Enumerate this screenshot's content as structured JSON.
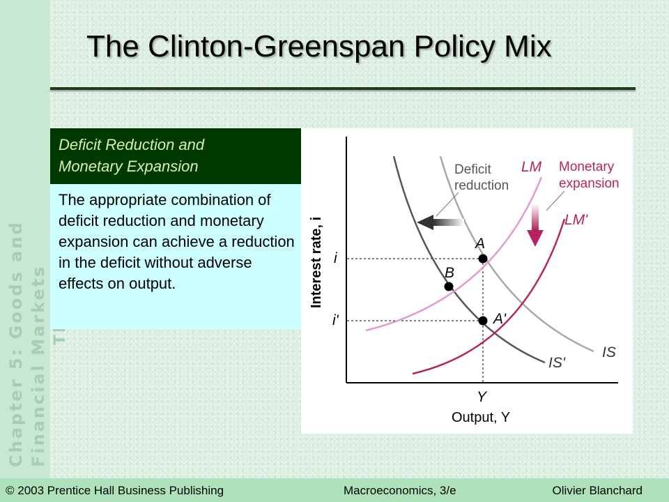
{
  "sidebar": {
    "line1": "Chapter 5: Goods and Financial Markets",
    "line2": "The IS/LM Model"
  },
  "title": "The Clinton-Greenspan Policy Mix",
  "box": {
    "heading_line1": "Deficit Reduction and",
    "heading_line2": "Monetary Expansion",
    "body": "The appropriate combination of deficit reduction and monetary expansion can achieve a reduction in the deficit without adverse effects on output."
  },
  "diagram": {
    "y_axis_label": "Interest rate, i",
    "x_axis_label": "Output, Y",
    "x_tick": "Y",
    "y_tick_high": "i",
    "y_tick_low": "i'",
    "curves": {
      "is": "IS",
      "is_prime": "IS'",
      "lm": "LM",
      "lm_prime": "LM'"
    },
    "points": {
      "a": "A",
      "b": "B",
      "a_prime": "A'"
    },
    "annotations": {
      "deficit_line1": "Deficit",
      "deficit_line2": "reduction",
      "monetary_line1": "Monetary",
      "monetary_line2": "expansion"
    },
    "colors": {
      "is": "#a8a8a8",
      "is_prime": "#555555",
      "lm": "#e39ad2",
      "lm_prime": "#b5245c",
      "label_lm": "#b5245c"
    }
  },
  "footer": {
    "left": "© 2003 Prentice Hall Business Publishing",
    "center": "Macroeconomics, 3/e",
    "right": "Olivier Blanchard"
  }
}
